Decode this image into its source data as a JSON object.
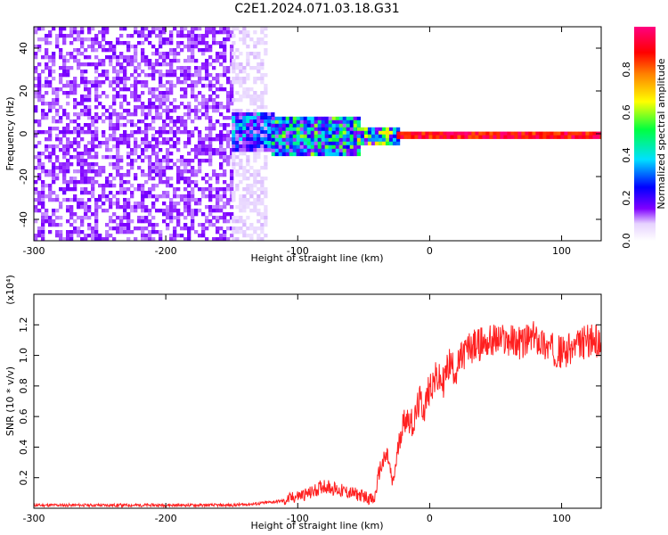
{
  "title": "C2E1.2024.071.03.18.G31",
  "chart_data": [
    {
      "type": "heatmap",
      "xlabel": "Height of straight line (km)",
      "ylabel": "Frequency (Hz)",
      "xlim": [
        -300,
        130
      ],
      "ylim": [
        -50,
        50
      ],
      "x_ticks": [
        -300,
        -200,
        -100,
        0,
        100
      ],
      "y_ticks": [
        -40,
        -20,
        0,
        20,
        40
      ],
      "colorbar": {
        "label": "Normalized spectral amplitude",
        "range": [
          0.0,
          1.0
        ],
        "ticks": [
          0.0,
          0.2,
          0.4,
          0.6,
          0.8
        ],
        "colormap": [
          "#ffffff",
          "#e6d2ff",
          "#8000ff",
          "#0000ff",
          "#00e0ff",
          "#00ff40",
          "#ffff00",
          "#ff8000",
          "#ff0000",
          "#ff0080"
        ]
      },
      "regions": [
        {
          "x": [
            -300,
            -150
          ],
          "freq": [
            -50,
            50
          ],
          "amplitude": 0.15
        },
        {
          "x": [
            -150,
            -125
          ],
          "freq": [
            -50,
            50
          ],
          "amplitude": 0.08
        },
        {
          "x": [
            -150,
            -120
          ],
          "freq": [
            -8,
            10
          ],
          "amplitude": 0.3
        },
        {
          "x": [
            -120,
            -55
          ],
          "freq": [
            -10,
            8
          ],
          "amplitude": 0.4
        },
        {
          "x": [
            -55,
            -25
          ],
          "freq": [
            -5,
            3
          ],
          "amplitude": 0.45
        },
        {
          "x": [
            -25,
            130
          ],
          "freq": [
            -1,
            1
          ],
          "amplitude": 0.9
        }
      ]
    },
    {
      "type": "line",
      "xlabel": "Height of straight line (km)",
      "ylabel": "SNR (10 * v/v)",
      "y_multiplier": "(x10⁴)",
      "xlim": [
        -300,
        130
      ],
      "ylim": [
        0.0,
        1.4
      ],
      "x_ticks": [
        -300,
        -200,
        -100,
        0,
        100
      ],
      "y_ticks": [
        0.2,
        0.4,
        0.6,
        0.8,
        1.0,
        1.2
      ],
      "color": "#ff2020",
      "series": [
        {
          "x": [
            -300,
            -250,
            -200,
            -150,
            -130,
            -110,
            -100,
            -90,
            -80,
            -70,
            -60,
            -50,
            -42,
            -38,
            -32,
            -28,
            -22,
            -18,
            -12,
            -8,
            -4,
            0,
            5,
            10,
            15,
            20,
            25,
            30,
            40,
            50,
            60,
            70,
            80,
            90,
            100,
            110,
            120,
            130
          ],
          "values": [
            0.02,
            0.02,
            0.02,
            0.02,
            0.03,
            0.05,
            0.08,
            0.1,
            0.15,
            0.12,
            0.1,
            0.08,
            0.05,
            0.25,
            0.35,
            0.15,
            0.5,
            0.6,
            0.55,
            0.7,
            0.65,
            0.8,
            0.85,
            0.82,
            0.95,
            0.9,
            1.0,
            1.05,
            1.08,
            1.1,
            1.1,
            1.08,
            1.12,
            1.05,
            1.02,
            1.05,
            1.1,
            1.08
          ]
        }
      ]
    }
  ]
}
